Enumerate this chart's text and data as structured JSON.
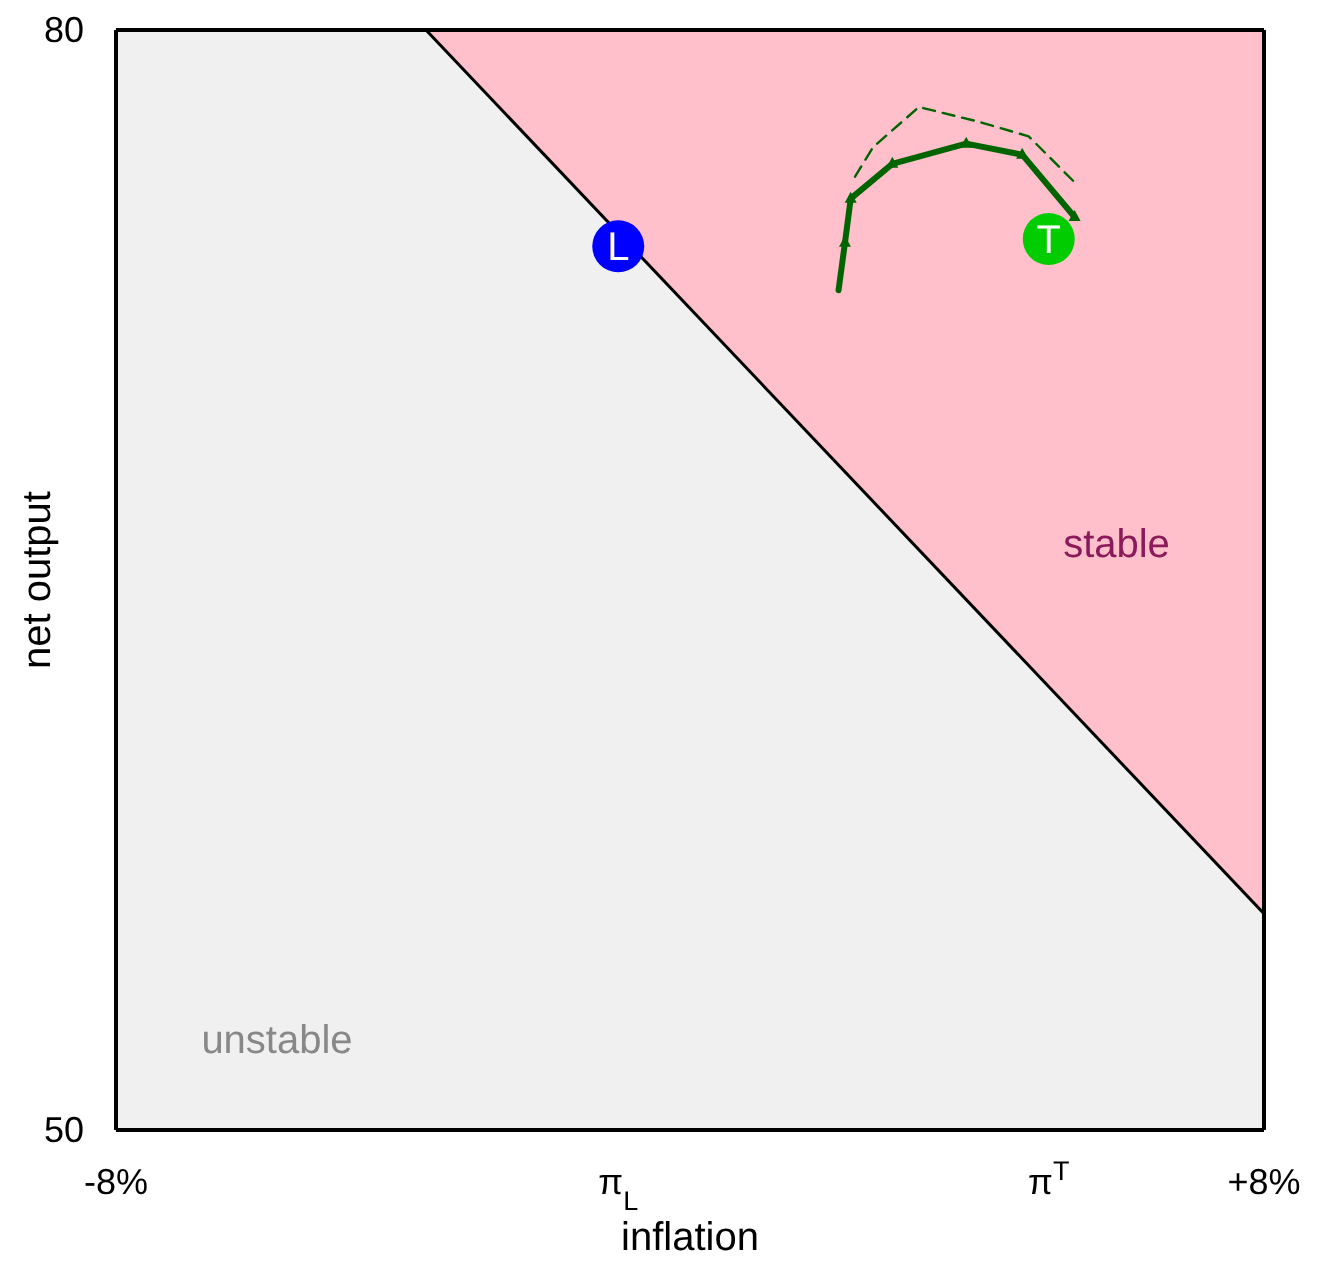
{
  "chart_data": {
    "type": "line",
    "xlabel": "inflation",
    "ylabel": "net output",
    "xlim": [
      -8,
      8
    ],
    "ylim": [
      50,
      80
    ],
    "xticks": [
      {
        "value": -8,
        "label": "-8%"
      },
      {
        "value": -1,
        "label": "π$_{L}$"
      },
      {
        "value": 5,
        "label": "π$^{T}$"
      },
      {
        "value": 8,
        "label": "+8%"
      }
    ],
    "yticks": [
      50,
      80
    ],
    "grid": false,
    "legend": false,
    "annotations": [
      "stable",
      "unstable"
    ],
    "series": [
      {
        "type": "area",
        "color": "#ffc0cb",
        "x": [
          -3.68,
          8
        ],
        "values": [
          80,
          55.9
        ]
      },
      {
        "color": "#006400",
        "line_style": "dashed",
        "marker": "none",
        "x": [
          2.3,
          2.55,
          3.19,
          4.02,
          4.72,
          5.41
        ],
        "values": [
          76.0,
          76.8,
          77.9,
          77.5,
          77.1,
          75.75
        ]
      },
      {
        "type": "line",
        "color": "#006400",
        "line_style": "solid",
        "marker": "triangle",
        "x": [
          2.07,
          2.16,
          2.24,
          2.82,
          3.85,
          4.63,
          5.36
        ],
        "values": [
          72.9,
          74.2,
          75.4,
          76.35,
          76.9,
          76.6,
          74.9
        ]
      },
      {
        "type": "scatter",
        "color": "#0000ff",
        "x": [
          -1
        ],
        "values": [
          74.1
        ],
        "value_labels": [
          "L"
        ]
      },
      {
        "type": "scatter",
        "color": "#00cc00",
        "x": [
          5
        ],
        "values": [
          74.3
        ],
        "value_labels": [
          "T"
        ]
      }
    ]
  }
}
